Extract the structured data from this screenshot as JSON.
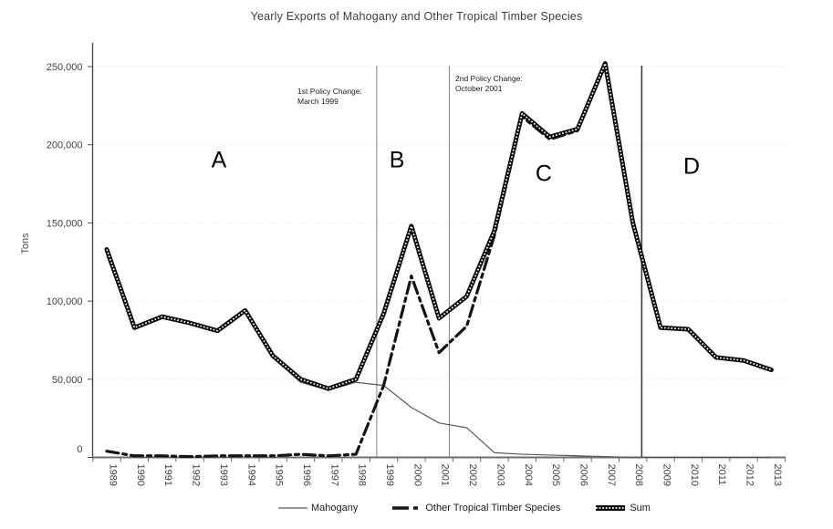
{
  "chart_data": {
    "type": "line",
    "title": "Yearly Exports of Mahogany and Other Tropical Timber Species",
    "ylabel": "Tons",
    "xlabel": "",
    "categories": [
      1989,
      1990,
      1991,
      1992,
      1993,
      1994,
      1995,
      1996,
      1997,
      1998,
      1999,
      2000,
      2001,
      2002,
      2003,
      2004,
      2005,
      2006,
      2007,
      2008,
      2009,
      2010,
      2011,
      2012,
      2013
    ],
    "series": [
      {
        "name": "Mahogany",
        "color": "#595959",
        "style": "thin-solid",
        "values": [
          129000,
          82000,
          89000,
          85500,
          80000,
          93000,
          64000,
          48000,
          43000,
          48000,
          46000,
          32000,
          22000,
          19000,
          3000,
          2000,
          1500,
          1000,
          500,
          0,
          0,
          0,
          0,
          0,
          0
        ]
      },
      {
        "name": "Other Tropical Timber Species",
        "color": "#141414",
        "style": "thick-dashed",
        "values": [
          4000,
          1000,
          1000,
          500,
          1000,
          1000,
          1000,
          2000,
          1000,
          2000,
          46000,
          116000,
          67000,
          84000,
          142000,
          218000,
          203500,
          209000,
          251500,
          150000,
          83000,
          82000,
          64000,
          62000,
          56000
        ]
      },
      {
        "name": "Sum",
        "color": "#0a0a0a",
        "style": "thick-textured",
        "values": [
          133000,
          83000,
          90000,
          86000,
          81000,
          94000,
          65000,
          50000,
          44000,
          50000,
          92000,
          148000,
          89000,
          103000,
          145000,
          220000,
          205000,
          210000,
          252000,
          150000,
          83000,
          82000,
          64000,
          62000,
          56000
        ]
      }
    ],
    "ylim": [
      0,
      250000
    ],
    "y_tick_step": 50000,
    "y_tick_labels": [
      "0",
      "50,000",
      "100,000",
      "150,000",
      "200,000",
      "250,000"
    ],
    "grid": "horizontal-dotted",
    "legend_position": "bottom",
    "vertical_lines": [
      {
        "year": 1998.75,
        "label_line1": "1st Policy Change:",
        "label_line2": "March 1999",
        "color": "#808080"
      },
      {
        "year": 2001.37,
        "label_line1": "2nd Policy Change:",
        "label_line2": "October 2001",
        "color": "#808080"
      },
      {
        "year": 2008.32,
        "label_line1": "",
        "label_line2": "",
        "color": "#3a3a3a"
      }
    ],
    "region_labels": [
      {
        "text": "A",
        "year": 1993.05,
        "tons": 190000
      },
      {
        "text": "B",
        "year": 1999.48,
        "tons": 190000
      },
      {
        "text": "C",
        "year": 2004.78,
        "tons": 181000
      },
      {
        "text": "D",
        "year": 2010.12,
        "tons": 186000
      }
    ]
  }
}
